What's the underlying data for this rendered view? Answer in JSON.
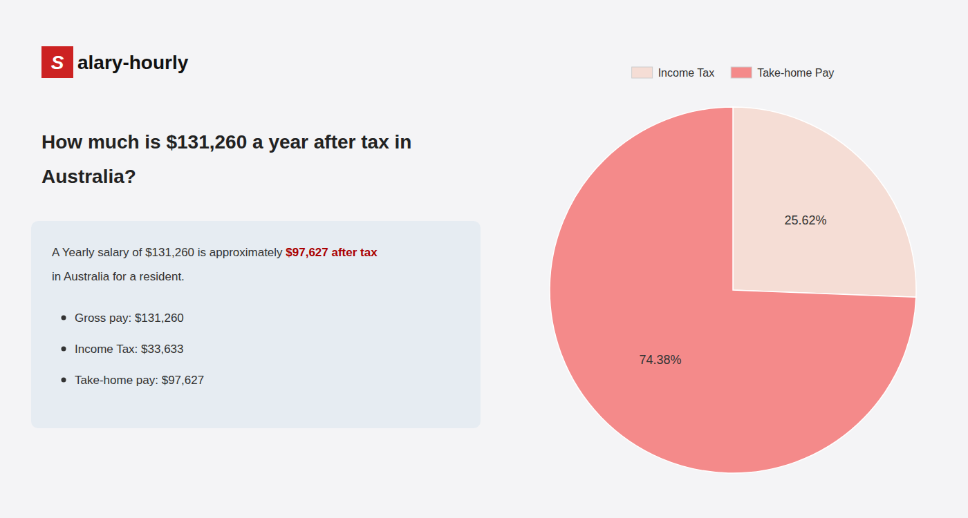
{
  "chart_data": {
    "type": "pie",
    "title": [
      "How much is $131,260 a year after tax in",
      "Australia?"
    ],
    "annotations": [
      {
        "text": "S",
        "color": "#cc2222"
      },
      {
        "text": "alary-hourly"
      },
      {
        "text": "A Yearly salary of $131,260 is approximately "
      },
      {
        "text": "$97,627 after tax",
        "color": "#aa0000"
      },
      {
        "text": "in Australia for a resident."
      },
      {
        "text": "Gross pay: $131,260"
      },
      {
        "text": "Income Tax: $33,633"
      },
      {
        "text": "Take-home pay: $97,627"
      }
    ],
    "categories": [
      "Income Tax",
      "Take-home Pay"
    ],
    "values": [
      25.62,
      74.38
    ],
    "value_labels": [
      "25.62%",
      "74.38%"
    ],
    "colors": [
      "#f5ddd5",
      "#f48a8a"
    ],
    "data_labels": true,
    "legend": "top"
  }
}
